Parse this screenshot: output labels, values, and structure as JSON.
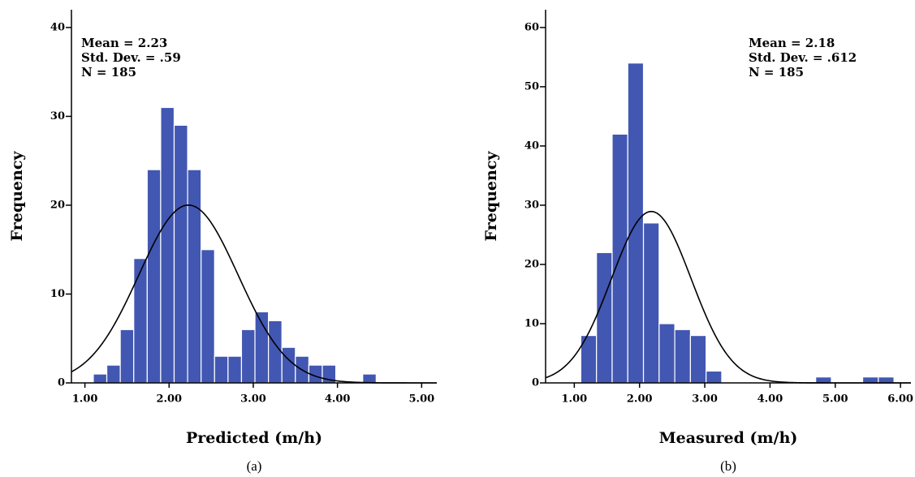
{
  "chart_data": [
    {
      "type": "histogram",
      "x_label": "Predicted (m/h)",
      "y_label": "Frequency",
      "caption": "(a)",
      "bins": [
        1.1,
        1.26,
        1.42,
        1.58,
        1.74,
        1.9,
        2.06,
        2.22,
        2.38,
        2.54,
        2.7,
        2.86,
        3.02,
        3.18,
        3.34,
        3.5,
        3.66,
        3.82,
        3.98,
        4.14,
        4.3,
        4.46
      ],
      "counts": [
        1,
        2,
        6,
        14,
        24,
        31,
        29,
        24,
        15,
        3,
        3,
        6,
        8,
        7,
        4,
        3,
        2,
        2,
        0,
        0,
        1
      ],
      "color": "#4257b2",
      "curve_color": "#000000",
      "stats": [
        {
          "value": 2.23,
          "label": "Mean = 2.23"
        },
        {
          "value": 0.59,
          "label": "Std. Dev. = .59"
        },
        {
          "value": 185,
          "label": "N = 185"
        }
      ],
      "stats_position": "top-left",
      "xlim": [
        0.84,
        5.18
      ],
      "ylim": [
        0,
        42
      ],
      "xticks": [
        {
          "value": 1,
          "label": "1.00"
        },
        {
          "value": 2,
          "label": "2.00"
        },
        {
          "value": 3,
          "label": "3.00"
        },
        {
          "value": 4,
          "label": "4.00"
        },
        {
          "value": 5,
          "label": "5.00"
        }
      ],
      "yticks": [
        0,
        10,
        20,
        30,
        40
      ]
    },
    {
      "type": "histogram",
      "x_label": "Measured (m/h)",
      "y_label": "Frequency",
      "caption": "(b)",
      "bins": [
        1.1,
        1.34,
        1.58,
        1.82,
        2.06,
        2.3,
        2.54,
        2.78,
        3.02,
        3.26,
        3.5,
        3.74,
        3.98,
        4.22,
        4.46,
        4.7,
        4.94,
        5.18,
        5.42,
        5.66,
        5.9
      ],
      "counts": [
        8,
        22,
        42,
        54,
        27,
        10,
        9,
        8,
        2,
        0,
        0,
        0,
        0,
        0,
        0,
        1,
        0,
        0,
        1,
        1
      ],
      "color": "#4257b2",
      "curve_color": "#000000",
      "stats": [
        {
          "value": 2.18,
          "label": "Mean = 2.18"
        },
        {
          "value": 0.612,
          "label": "Std. Dev. = .612"
        },
        {
          "value": 185,
          "label": "N = 185"
        }
      ],
      "stats_position": "top-right",
      "xlim": [
        0.56,
        6.16
      ],
      "ylim": [
        0,
        63
      ],
      "xticks": [
        {
          "value": 1,
          "label": "1.00"
        },
        {
          "value": 2,
          "label": "2.00"
        },
        {
          "value": 3,
          "label": "3.00"
        },
        {
          "value": 4,
          "label": "4.00"
        },
        {
          "value": 5,
          "label": "5.00"
        },
        {
          "value": 6,
          "label": "6.00"
        }
      ],
      "yticks": [
        0,
        10,
        20,
        30,
        40,
        50,
        60
      ]
    }
  ]
}
